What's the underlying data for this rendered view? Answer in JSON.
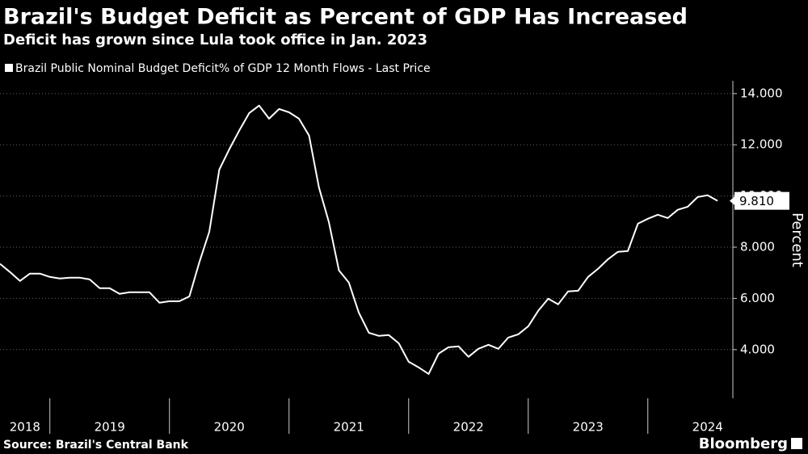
{
  "chart_data": {
    "type": "line",
    "title": "Brazil's Budget Deficit as Percent of GDP Has Increased",
    "subtitle": "Deficit has grown since Lula took office in Jan. 2023",
    "source": "Source: Brazil's Central Bank",
    "brand": "Bloomberg",
    "y_axis_label": "Percent",
    "x": [
      2018.583,
      2018.667,
      2018.75,
      2018.833,
      2018.917,
      2019.0,
      2019.083,
      2019.167,
      2019.25,
      2019.333,
      2019.417,
      2019.5,
      2019.583,
      2019.667,
      2019.75,
      2019.833,
      2019.917,
      2020.0,
      2020.083,
      2020.167,
      2020.25,
      2020.333,
      2020.417,
      2020.5,
      2020.583,
      2020.667,
      2020.75,
      2020.833,
      2020.917,
      2021.0,
      2021.083,
      2021.167,
      2021.25,
      2021.333,
      2021.417,
      2021.5,
      2021.583,
      2021.667,
      2021.75,
      2021.833,
      2021.917,
      2022.0,
      2022.083,
      2022.167,
      2022.25,
      2022.333,
      2022.417,
      2022.5,
      2022.583,
      2022.667,
      2022.75,
      2022.833,
      2022.917,
      2023.0,
      2023.083,
      2023.167,
      2023.25,
      2023.333,
      2023.417,
      2023.5,
      2023.583,
      2023.667,
      2023.75,
      2023.833,
      2023.917,
      2024.0,
      2024.083,
      2024.167,
      2024.25,
      2024.333,
      2024.417,
      2024.5,
      2024.583
    ],
    "series": [
      {
        "name": "Brazil Public Nominal Budget Deficit% of GDP 12 Month Flows - Last Price",
        "color": "#ffffff",
        "values": [
          7.35,
          7.03,
          6.68,
          6.97,
          6.97,
          6.84,
          6.78,
          6.81,
          6.81,
          6.74,
          6.4,
          6.4,
          6.18,
          6.24,
          6.24,
          6.24,
          5.83,
          5.89,
          5.89,
          6.08,
          7.41,
          8.6,
          11.03,
          11.82,
          12.55,
          13.24,
          13.53,
          13.02,
          13.4,
          13.27,
          13.02,
          12.36,
          10.34,
          8.98,
          7.09,
          6.62,
          5.45,
          4.66,
          4.54,
          4.57,
          4.25,
          3.53,
          3.31,
          3.05,
          3.84,
          4.09,
          4.13,
          3.72,
          4.03,
          4.19,
          4.03,
          4.47,
          4.6,
          4.91,
          5.51,
          5.99,
          5.77,
          6.27,
          6.3,
          6.84,
          7.15,
          7.53,
          7.82,
          7.85,
          8.92,
          9.11,
          9.27,
          9.14,
          9.46,
          9.58,
          9.96,
          10.03,
          9.81
        ],
        "last_label": "9.810"
      }
    ],
    "xlim": [
      2018.583,
      2024.711
    ],
    "xticks": [
      2019,
      2020,
      2021,
      2022,
      2023,
      2024
    ],
    "years": [
      2018,
      2019,
      2020,
      2021,
      2022,
      2023,
      2024
    ],
    "ylim": [
      2.1,
      14.5
    ],
    "yticks": [
      {
        "value": 4,
        "label": "4.000"
      },
      {
        "value": 6,
        "label": "6.000"
      },
      {
        "value": 8,
        "label": "8.000"
      },
      {
        "value": 10,
        "label": "10.000"
      },
      {
        "value": 12,
        "label": "12.000"
      },
      {
        "value": 14,
        "label": "14.000"
      }
    ]
  }
}
